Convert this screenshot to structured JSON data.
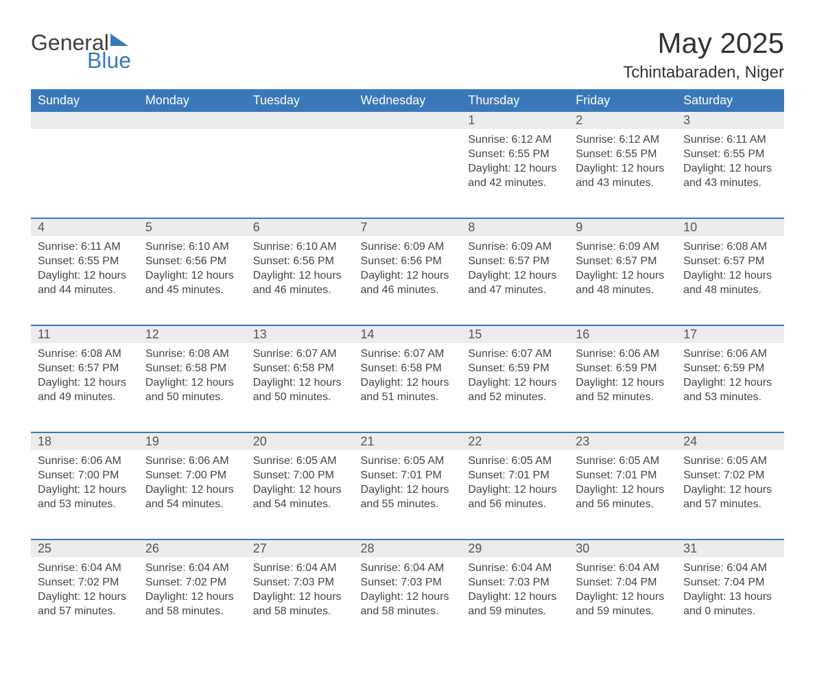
{
  "logo": {
    "word1": "General",
    "word2": "Blue",
    "accent_color": "#3a78b9"
  },
  "title": "May 2025",
  "location": "Tchintabaraden, Niger",
  "colors": {
    "header_bg": "#3a78b9",
    "header_text": "#ffffff",
    "daynum_bg": "#ececec",
    "row_border": "#3a78b9",
    "body_text": "#444444",
    "page_bg": "#ffffff"
  },
  "fonts": {
    "title_size_pt": 42,
    "location_size_pt": 24,
    "header_size_pt": 18,
    "body_size_pt": 16
  },
  "weekdays": [
    "Sunday",
    "Monday",
    "Tuesday",
    "Wednesday",
    "Thursday",
    "Friday",
    "Saturday"
  ],
  "weeks": [
    [
      null,
      null,
      null,
      null,
      {
        "n": "1",
        "sunrise": "6:12 AM",
        "sunset": "6:55 PM",
        "daylight": "12 hours and 42 minutes."
      },
      {
        "n": "2",
        "sunrise": "6:12 AM",
        "sunset": "6:55 PM",
        "daylight": "12 hours and 43 minutes."
      },
      {
        "n": "3",
        "sunrise": "6:11 AM",
        "sunset": "6:55 PM",
        "daylight": "12 hours and 43 minutes."
      }
    ],
    [
      {
        "n": "4",
        "sunrise": "6:11 AM",
        "sunset": "6:55 PM",
        "daylight": "12 hours and 44 minutes."
      },
      {
        "n": "5",
        "sunrise": "6:10 AM",
        "sunset": "6:56 PM",
        "daylight": "12 hours and 45 minutes."
      },
      {
        "n": "6",
        "sunrise": "6:10 AM",
        "sunset": "6:56 PM",
        "daylight": "12 hours and 46 minutes."
      },
      {
        "n": "7",
        "sunrise": "6:09 AM",
        "sunset": "6:56 PM",
        "daylight": "12 hours and 46 minutes."
      },
      {
        "n": "8",
        "sunrise": "6:09 AM",
        "sunset": "6:57 PM",
        "daylight": "12 hours and 47 minutes."
      },
      {
        "n": "9",
        "sunrise": "6:09 AM",
        "sunset": "6:57 PM",
        "daylight": "12 hours and 48 minutes."
      },
      {
        "n": "10",
        "sunrise": "6:08 AM",
        "sunset": "6:57 PM",
        "daylight": "12 hours and 48 minutes."
      }
    ],
    [
      {
        "n": "11",
        "sunrise": "6:08 AM",
        "sunset": "6:57 PM",
        "daylight": "12 hours and 49 minutes."
      },
      {
        "n": "12",
        "sunrise": "6:08 AM",
        "sunset": "6:58 PM",
        "daylight": "12 hours and 50 minutes."
      },
      {
        "n": "13",
        "sunrise": "6:07 AM",
        "sunset": "6:58 PM",
        "daylight": "12 hours and 50 minutes."
      },
      {
        "n": "14",
        "sunrise": "6:07 AM",
        "sunset": "6:58 PM",
        "daylight": "12 hours and 51 minutes."
      },
      {
        "n": "15",
        "sunrise": "6:07 AM",
        "sunset": "6:59 PM",
        "daylight": "12 hours and 52 minutes."
      },
      {
        "n": "16",
        "sunrise": "6:06 AM",
        "sunset": "6:59 PM",
        "daylight": "12 hours and 52 minutes."
      },
      {
        "n": "17",
        "sunrise": "6:06 AM",
        "sunset": "6:59 PM",
        "daylight": "12 hours and 53 minutes."
      }
    ],
    [
      {
        "n": "18",
        "sunrise": "6:06 AM",
        "sunset": "7:00 PM",
        "daylight": "12 hours and 53 minutes."
      },
      {
        "n": "19",
        "sunrise": "6:06 AM",
        "sunset": "7:00 PM",
        "daylight": "12 hours and 54 minutes."
      },
      {
        "n": "20",
        "sunrise": "6:05 AM",
        "sunset": "7:00 PM",
        "daylight": "12 hours and 54 minutes."
      },
      {
        "n": "21",
        "sunrise": "6:05 AM",
        "sunset": "7:01 PM",
        "daylight": "12 hours and 55 minutes."
      },
      {
        "n": "22",
        "sunrise": "6:05 AM",
        "sunset": "7:01 PM",
        "daylight": "12 hours and 56 minutes."
      },
      {
        "n": "23",
        "sunrise": "6:05 AM",
        "sunset": "7:01 PM",
        "daylight": "12 hours and 56 minutes."
      },
      {
        "n": "24",
        "sunrise": "6:05 AM",
        "sunset": "7:02 PM",
        "daylight": "12 hours and 57 minutes."
      }
    ],
    [
      {
        "n": "25",
        "sunrise": "6:04 AM",
        "sunset": "7:02 PM",
        "daylight": "12 hours and 57 minutes."
      },
      {
        "n": "26",
        "sunrise": "6:04 AM",
        "sunset": "7:02 PM",
        "daylight": "12 hours and 58 minutes."
      },
      {
        "n": "27",
        "sunrise": "6:04 AM",
        "sunset": "7:03 PM",
        "daylight": "12 hours and 58 minutes."
      },
      {
        "n": "28",
        "sunrise": "6:04 AM",
        "sunset": "7:03 PM",
        "daylight": "12 hours and 58 minutes."
      },
      {
        "n": "29",
        "sunrise": "6:04 AM",
        "sunset": "7:03 PM",
        "daylight": "12 hours and 59 minutes."
      },
      {
        "n": "30",
        "sunrise": "6:04 AM",
        "sunset": "7:04 PM",
        "daylight": "12 hours and 59 minutes."
      },
      {
        "n": "31",
        "sunrise": "6:04 AM",
        "sunset": "7:04 PM",
        "daylight": "13 hours and 0 minutes."
      }
    ]
  ],
  "labels": {
    "sunrise": "Sunrise: ",
    "sunset": "Sunset: ",
    "daylight": "Daylight: "
  }
}
